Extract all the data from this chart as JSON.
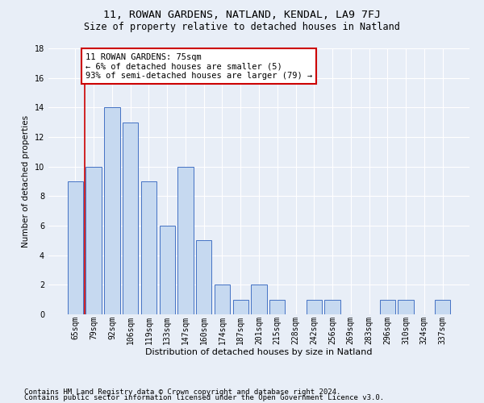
{
  "title": "11, ROWAN GARDENS, NATLAND, KENDAL, LA9 7FJ",
  "subtitle": "Size of property relative to detached houses in Natland",
  "xlabel": "Distribution of detached houses by size in Natland",
  "ylabel": "Number of detached properties",
  "categories": [
    "65sqm",
    "79sqm",
    "92sqm",
    "106sqm",
    "119sqm",
    "133sqm",
    "147sqm",
    "160sqm",
    "174sqm",
    "187sqm",
    "201sqm",
    "215sqm",
    "228sqm",
    "242sqm",
    "256sqm",
    "269sqm",
    "283sqm",
    "296sqm",
    "310sqm",
    "324sqm",
    "337sqm"
  ],
  "values": [
    9,
    10,
    14,
    13,
    9,
    6,
    10,
    5,
    2,
    1,
    2,
    1,
    0,
    1,
    1,
    0,
    0,
    1,
    1,
    0,
    1
  ],
  "bar_color": "#c6d9f0",
  "bar_edgecolor": "#4472c4",
  "vline_color": "#cc0000",
  "annotation_box_text": "11 ROWAN GARDENS: 75sqm\n← 6% of detached houses are smaller (5)\n93% of semi-detached houses are larger (79) →",
  "annotation_box_color": "#cc0000",
  "ylim": [
    0,
    18
  ],
  "yticks": [
    0,
    2,
    4,
    6,
    8,
    10,
    12,
    14,
    16,
    18
  ],
  "background_color": "#e8eef7",
  "footnote1": "Contains HM Land Registry data © Crown copyright and database right 2024.",
  "footnote2": "Contains public sector information licensed under the Open Government Licence v3.0.",
  "title_fontsize": 9.5,
  "subtitle_fontsize": 8.5,
  "xlabel_fontsize": 8,
  "ylabel_fontsize": 7.5,
  "tick_fontsize": 7,
  "annotation_fontsize": 7.5,
  "footnote_fontsize": 6.5
}
